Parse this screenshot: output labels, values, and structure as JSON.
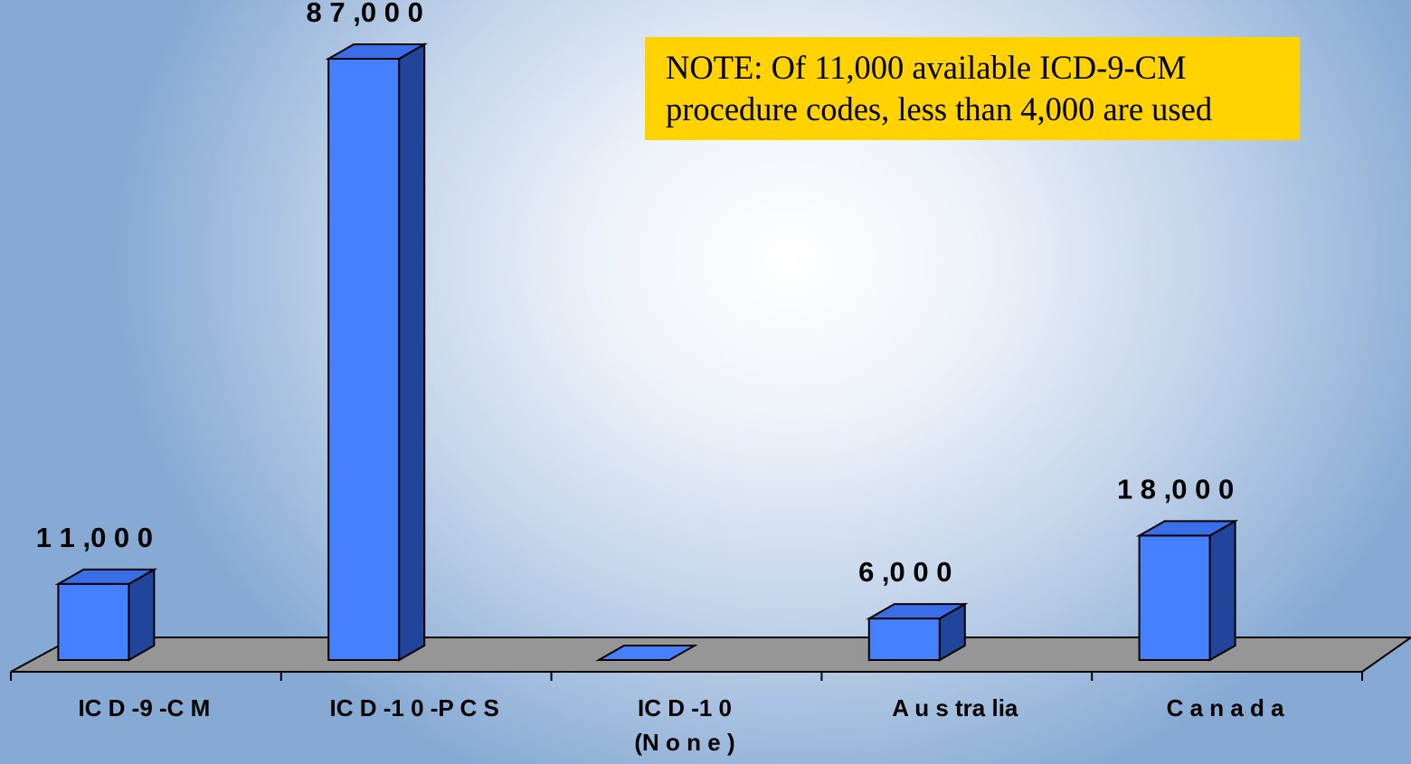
{
  "chart_data": {
    "type": "bar",
    "style": "3d",
    "categories": [
      "ICD-9-CM",
      "ICD-10-PCS",
      "ICD-10",
      "Australia",
      "Canada"
    ],
    "category_display": [
      [
        "IC D -9 -C M"
      ],
      [
        "IC D -1 0 -P C S"
      ],
      [
        "IC D -1 0",
        "(N o n e )"
      ],
      [
        "A u s tra lia"
      ],
      [
        "C a n a d a"
      ]
    ],
    "values": [
      11000,
      87000,
      0,
      6000,
      18000
    ],
    "data_labels": [
      "1 1 ,0 0 0",
      "8 7 ,0 0 0",
      "",
      "6 ,0 0 0",
      "1 8 ,0 0 0"
    ],
    "ylim": [
      0,
      87000
    ],
    "grid": false,
    "legend": "none",
    "colors": {
      "bar_front": "#4580ff",
      "bar_top": "#3a6ee8",
      "bar_side": "#21459a",
      "floor": "#969696",
      "outline": "#000000"
    }
  },
  "note": {
    "line1": "NOTE: Of 11,000 available ICD-9-CM",
    "line2": "procedure codes, less than 4,000 are used",
    "background": "#ffd200"
  }
}
